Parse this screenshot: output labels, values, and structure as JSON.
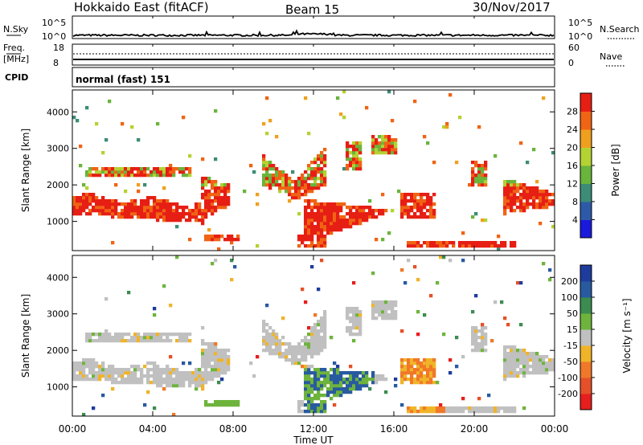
{
  "header": {
    "station": "Hokkaido East (fitACF)",
    "beam": "Beam 15",
    "date": "30/Nov/2017"
  },
  "noise_panel": {
    "left_label": "N.Sky",
    "right_label": "N.Search",
    "ticks": [
      "10^5",
      "10^0"
    ],
    "scale": "log"
  },
  "freq_panel": {
    "left_label_line1": "Freq.",
    "left_label_line2": "[MHz]",
    "right_label": "Nave",
    "left_ticks": [
      "18",
      "8"
    ],
    "right_ticks": [
      "60",
      "0"
    ]
  },
  "cpid_panel": {
    "left_label": "CPID",
    "program": "normal (fast) 151"
  },
  "chart_data": [
    {
      "type": "heatmap",
      "title": "",
      "ylabel": "Slant Range [km]",
      "y_ticks": [
        "1000",
        "2000",
        "3000",
        "4000"
      ],
      "ylim": [
        200,
        4600
      ],
      "xlim": [
        0,
        24
      ],
      "colorbar": {
        "label": "Power [dB]",
        "ticks": [
          "4",
          "8",
          "12",
          "16",
          "20",
          "24",
          "28"
        ],
        "range": [
          0,
          32
        ],
        "colors": [
          "#1a1adc",
          "#2d5aa8",
          "#3c8c78",
          "#6ab43c",
          "#b4d232",
          "#f0a01e",
          "#f06414",
          "#e61e14"
        ]
      }
    },
    {
      "type": "heatmap",
      "title": "",
      "ylabel": "Slant Range [km]",
      "y_ticks": [
        "1000",
        "2000",
        "3000",
        "4000"
      ],
      "ylim": [
        200,
        4600
      ],
      "xlim": [
        0,
        24
      ],
      "xlabel": "Time UT",
      "x_ticks": [
        "00:00",
        "04:00",
        "08:00",
        "12:00",
        "16:00",
        "20:00",
        "00:00"
      ],
      "colorbar": {
        "label": "Velocity [m s⁻¹]",
        "ticks": [
          "200",
          "100",
          "50",
          "15",
          "-15",
          "-50",
          "-100",
          "-200"
        ],
        "colors": [
          "#1e3c9c",
          "#285aa0",
          "#3c8c50",
          "#6eb43c",
          "#c0c0c0",
          "#f0b428",
          "#f07828",
          "#e65028",
          "#e61e1e"
        ]
      }
    }
  ]
}
